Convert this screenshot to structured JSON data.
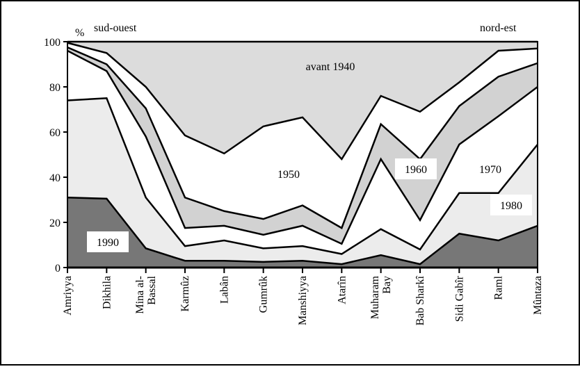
{
  "chart_data": {
    "type": "stacked_area",
    "categories": [
      "Amriyya",
      "Dikhila",
      "Mina al-\nBassal",
      "Karmûz",
      "Labân",
      "Gumrûk",
      "Manshiyya",
      "Atarîn",
      "Muharam\nBay",
      "Bab Sharkî",
      "Sidi Gabîr",
      "Raml",
      "Mûntaza"
    ],
    "series": [
      {
        "name": "1990",
        "color": "#777777",
        "values": [
          31,
          30.5,
          8.5,
          3,
          3,
          2.5,
          3,
          1.5,
          5.5,
          1.5,
          15,
          12,
          18.5
        ]
      },
      {
        "name": "1980",
        "color": "#ececec",
        "values": [
          43,
          44.5,
          22.5,
          6.5,
          9,
          6,
          6.5,
          4.5,
          11.5,
          6.5,
          18,
          21,
          36
        ]
      },
      {
        "name": "1970",
        "color": "#ffffff",
        "values": [
          22,
          12,
          27,
          8,
          6.5,
          6,
          9,
          4.5,
          31,
          13,
          21.5,
          34,
          25.5
        ]
      },
      {
        "name": "1960",
        "color": "#d2d2d2",
        "values": [
          1.5,
          3,
          12.5,
          13.5,
          6.5,
          7,
          9,
          7,
          15.5,
          27,
          17,
          17.5,
          10.5
        ]
      },
      {
        "name": "1950",
        "color": "#ffffff",
        "values": [
          2,
          5,
          9.5,
          27.5,
          25.5,
          41,
          39,
          30.5,
          12.5,
          21,
          10.5,
          11.5,
          6.5
        ]
      },
      {
        "name": "avant 1940",
        "color": "#dcdcdc",
        "values": [
          0.5,
          5,
          20,
          41.5,
          49.5,
          37.5,
          33.5,
          52,
          24,
          31,
          18,
          4,
          3
        ]
      }
    ],
    "annotations": [
      "%",
      "sud-ouest",
      "nord-est"
    ],
    "ylim": [
      0,
      100
    ],
    "yticks": [
      0,
      20,
      40,
      60,
      80,
      100
    ]
  }
}
